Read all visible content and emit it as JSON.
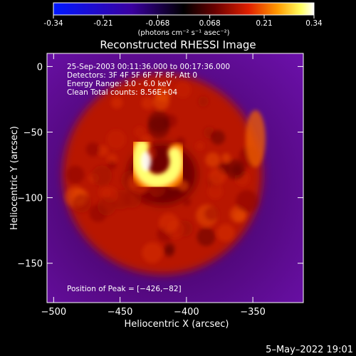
{
  "colorbar": {
    "ticks": [
      "-0.34",
      "-0.21",
      "-0.068",
      "0.068",
      "0.21",
      "0.34"
    ],
    "tick_values": [
      -0.34,
      -0.21,
      -0.068,
      0.068,
      0.21,
      0.34
    ],
    "range": [
      -0.34,
      0.34
    ],
    "unit_label": "(photons cm⁻² s⁻¹ asec⁻²)",
    "colormap": [
      "#0018ff",
      "#3a00a0",
      "#000000",
      "#6a0000",
      "#e02000",
      "#ff9a00",
      "#ffff60",
      "#ffffff"
    ]
  },
  "chart_data": {
    "type": "heatmap",
    "title": "Reconstructed RHESSI Image",
    "xlabel": "Heliocentric X (arcsec)",
    "ylabel": "Heliocentric Y (arcsec)",
    "xlim": [
      -505,
      -312
    ],
    "ylim": [
      -180,
      10
    ],
    "xticks": [
      -500,
      -450,
      -400,
      -350
    ],
    "xtick_labels": [
      "−500",
      "−450",
      "−400",
      "−350"
    ],
    "yticks": [
      0,
      -50,
      -100,
      -150
    ],
    "ytick_labels": [
      "0",
      "−50",
      "−100",
      "−150"
    ],
    "annotations": [
      "25-Sep-2003 00:11:36.000 to 00:17:36.000",
      "Detectors: 3F 4F 5F 6F 7F 8F, Att 0",
      "Energy Range: 3.0 - 6.0 keV",
      "Clean     Total counts: 8.56E+04"
    ],
    "peak_label": "Position of Peak = [−426,−82]",
    "peak": [
      -426,
      -82
    ],
    "peak_value": 0.34,
    "disk_center": [
      -418,
      -82
    ],
    "disk_radius": 75,
    "background_value": -0.05,
    "disk_value": 0.11
  },
  "footer": {
    "timestamp": "5–May–2022 19:01"
  }
}
